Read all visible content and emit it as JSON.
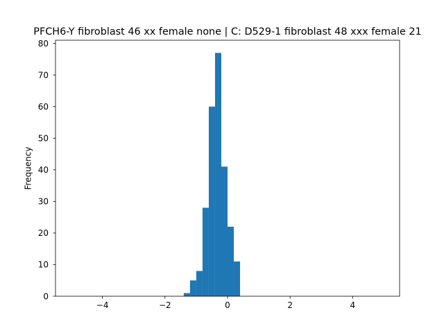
{
  "chart_data": {
    "type": "bar",
    "subtype": "histogram",
    "title": "PFCH6-Y fibroblast 46 xx female none | C: D529-1 fibroblast 48 xxx female 21",
    "xlabel": "",
    "ylabel": "Frequency",
    "xlim": [
      -5.5,
      5.5
    ],
    "ylim": [
      0,
      81
    ],
    "x_ticks": [
      -4,
      -2,
      0,
      2,
      4
    ],
    "x_tick_labels": [
      "−4",
      "−2",
      "0",
      "2",
      "4"
    ],
    "y_ticks": [
      0,
      10,
      20,
      30,
      40,
      50,
      60,
      70,
      80
    ],
    "y_tick_labels": [
      "0",
      "10",
      "20",
      "30",
      "40",
      "50",
      "60",
      "70",
      "80"
    ],
    "grid": false,
    "legend": "none",
    "bar_color": "#1f77b4",
    "bins": [
      {
        "x0": -1.4,
        "x1": -1.2,
        "count": 1
      },
      {
        "x0": -1.2,
        "x1": -1.0,
        "count": 5
      },
      {
        "x0": -1.0,
        "x1": -0.8,
        "count": 8
      },
      {
        "x0": -0.8,
        "x1": -0.6,
        "count": 28
      },
      {
        "x0": -0.6,
        "x1": -0.4,
        "count": 60
      },
      {
        "x0": -0.4,
        "x1": -0.2,
        "count": 77
      },
      {
        "x0": -0.2,
        "x1": 0.0,
        "count": 41
      },
      {
        "x0": 0.0,
        "x1": 0.2,
        "count": 22
      },
      {
        "x0": 0.2,
        "x1": 0.4,
        "count": 11
      }
    ]
  }
}
